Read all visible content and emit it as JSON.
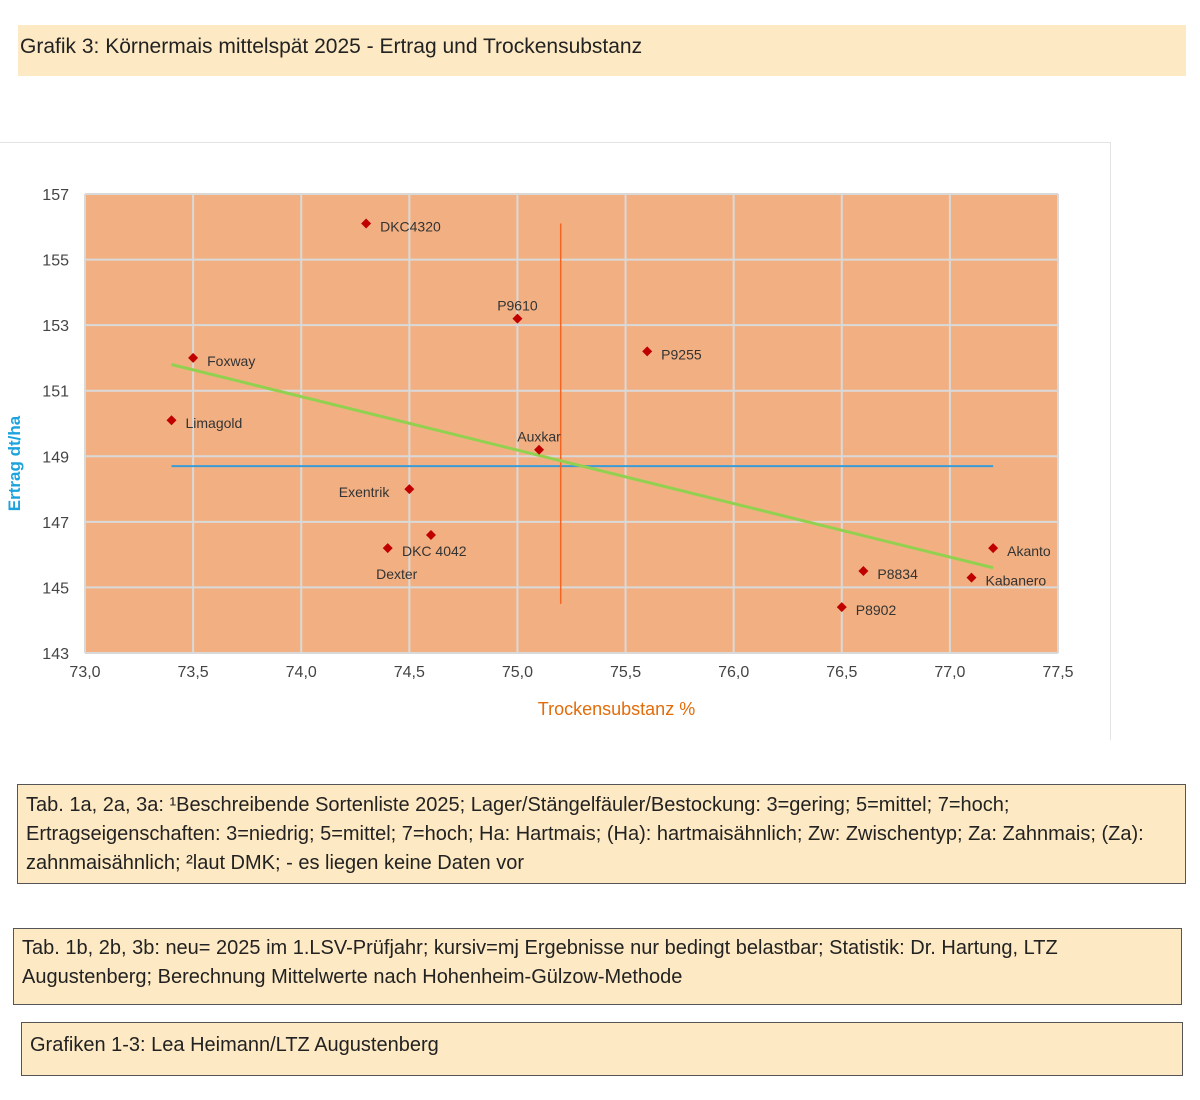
{
  "header": {
    "title": "Grafik 3: Körnermais mittelspät 2025 - Ertrag und Trockensubstanz"
  },
  "colors": {
    "plot_bg": "#f2b082",
    "grid": "#d9d9d9",
    "marker": "#c00000",
    "trend": "#92d050",
    "mean_x": "#f26522",
    "mean_y": "#3b9bd6",
    "ylabel": "#1ca3de",
    "xlabel": "#e36c0a"
  },
  "chart_data": {
    "type": "scatter",
    "title": "",
    "xlabel": "Trockensubstanz %",
    "ylabel": "Ertrag dt/ha",
    "xlim": [
      73.0,
      77.5
    ],
    "ylim": [
      143,
      157
    ],
    "xticks": [
      73.0,
      73.5,
      74.0,
      74.5,
      75.0,
      75.5,
      76.0,
      76.5,
      77.0,
      77.5
    ],
    "xtick_labels": [
      "73,0",
      "73,5",
      "74,0",
      "74,5",
      "75,0",
      "75,5",
      "76,0",
      "76,5",
      "77,0",
      "77,5"
    ],
    "yticks": [
      143,
      145,
      147,
      149,
      151,
      153,
      155,
      157
    ],
    "ytick_labels": [
      "143",
      "145",
      "147",
      "149",
      "151",
      "153",
      "155",
      "157"
    ],
    "grid": true,
    "points": [
      {
        "name": "DKC4320",
        "x": 74.3,
        "y": 156.1,
        "label_pos": "right"
      },
      {
        "name": "P9610",
        "x": 75.0,
        "y": 153.2,
        "label_pos": "above"
      },
      {
        "name": "Foxway",
        "x": 73.5,
        "y": 152.0,
        "label_pos": "right"
      },
      {
        "name": "P9255",
        "x": 75.6,
        "y": 152.2,
        "label_pos": "right"
      },
      {
        "name": "Limagold",
        "x": 73.4,
        "y": 150.1,
        "label_pos": "right"
      },
      {
        "name": "Auxkar",
        "x": 75.1,
        "y": 149.2,
        "label_pos": "above"
      },
      {
        "name": "Exentrik",
        "x": 74.5,
        "y": 148.0,
        "label_pos": "left"
      },
      {
        "name": "DKC 4042",
        "x": 74.6,
        "y": 146.6,
        "label_pos": "below"
      },
      {
        "name": "Dexter",
        "x": 74.4,
        "y": 146.2,
        "label_pos": "below"
      },
      {
        "name": "Akanto",
        "x": 77.2,
        "y": 146.2,
        "label_pos": "right"
      },
      {
        "name": "P8834",
        "x": 76.6,
        "y": 145.5,
        "label_pos": "right"
      },
      {
        "name": "Kabanero",
        "x": 77.1,
        "y": 145.3,
        "label_pos": "right"
      },
      {
        "name": "P8902",
        "x": 76.5,
        "y": 144.4,
        "label_pos": "right"
      }
    ],
    "trendline": {
      "x1": 73.4,
      "y1": 151.8,
      "x2": 77.2,
      "y2": 145.6
    },
    "mean_lines": {
      "vertical": {
        "x": 75.2,
        "y_from": 144.5,
        "y_to": 156.1
      },
      "horizontal": {
        "y": 148.7,
        "x_from": 73.4,
        "x_to": 77.2
      }
    }
  },
  "notes": {
    "note1": "Tab. 1a, 2a, 3a: ¹Beschreibende Sortenliste 2025; Lager/Stängelfäuler/Bestockung: 3=gering; 5=mittel; 7=hoch; Ertragseigenschaften: 3=niedrig; 5=mittel; 7=hoch;  Ha: Hartmais; (Ha): hartmaisähnlich; Zw: Zwischentyp; Za: Zahnmais; (Za): zahnmaisähnlich; ²laut DMK;  - es liegen keine Daten vor",
    "note2": "Tab. 1b, 2b, 3b: neu= 2025 im 1.LSV-Prüfjahr; kursiv=mj Ergebnisse nur bedingt belastbar; Statistik: Dr. Hartung, LTZ Augustenberg; Berechnung Mittelwerte nach Hohenheim-Gülzow-Methode",
    "note3": "Grafiken 1-3: Lea Heimann/LTZ Augustenberg"
  }
}
